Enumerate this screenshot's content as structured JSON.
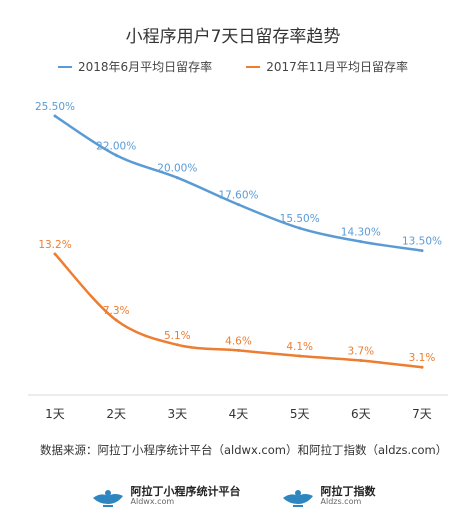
{
  "chart_data": {
    "type": "line",
    "title": "小程序用户7天日留存率趋势",
    "categories": [
      "1天",
      "2天",
      "3天",
      "4天",
      "5天",
      "6天",
      "7天"
    ],
    "ylim": [
      0,
      28
    ],
    "grid": false,
    "legend_position": "top",
    "series": [
      {
        "name": "2018年6月平均日留存率",
        "color": "#5b9bd5",
        "values": [
          25.5,
          22.0,
          20.0,
          17.6,
          15.5,
          14.3,
          13.5
        ],
        "labels": [
          "25.50%",
          "22.00%",
          "20.00%",
          "17.60%",
          "15.50%",
          "14.30%",
          "13.50%"
        ]
      },
      {
        "name": "2017年11月平均日留存率",
        "color": "#ed7d31",
        "values": [
          13.2,
          7.3,
          5.1,
          4.6,
          4.1,
          3.7,
          3.1
        ],
        "labels": [
          "13.2%",
          "7.3%",
          "5.1%",
          "4.6%",
          "4.1%",
          "3.7%",
          "3.1%"
        ]
      }
    ]
  },
  "source": "数据来源：阿拉丁小程序统计平台（aldwx.com）和阿拉丁指数（aldzs.com）",
  "footer": {
    "brand1": {
      "name": "阿拉丁小程序统计平台",
      "url": "Aldwx.com"
    },
    "brand2": {
      "name": "阿拉丁指数",
      "url": "Aldzs.com"
    }
  }
}
